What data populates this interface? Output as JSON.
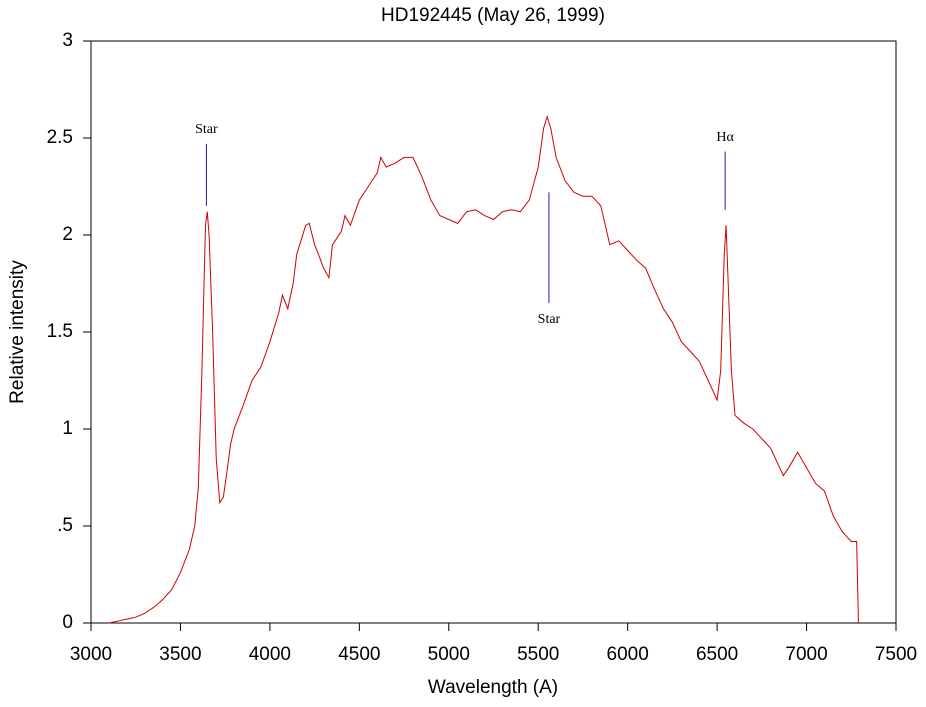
{
  "chart_data": {
    "type": "line",
    "title": "HD192445 (May 26, 1999)",
    "x_label": "Wavelength (A)",
    "y_label": "Relative intensity",
    "x": [
      3100,
      3150,
      3200,
      3250,
      3300,
      3350,
      3400,
      3450,
      3500,
      3550,
      3580,
      3600,
      3620,
      3640,
      3650,
      3660,
      3680,
      3700,
      3720,
      3740,
      3760,
      3780,
      3800,
      3850,
      3900,
      3950,
      4000,
      4050,
      4070,
      4100,
      4130,
      4150,
      4200,
      4220,
      4250,
      4280,
      4300,
      4330,
      4350,
      4400,
      4420,
      4450,
      4500,
      4550,
      4600,
      4620,
      4650,
      4700,
      4750,
      4800,
      4850,
      4900,
      4950,
      5000,
      5050,
      5100,
      5150,
      5200,
      5250,
      5300,
      5350,
      5400,
      5450,
      5500,
      5530,
      5550,
      5570,
      5600,
      5650,
      5700,
      5750,
      5800,
      5850,
      5900,
      5950,
      6000,
      6050,
      6100,
      6150,
      6200,
      6250,
      6300,
      6350,
      6400,
      6450,
      6500,
      6520,
      6540,
      6550,
      6560,
      6580,
      6600,
      6650,
      6700,
      6750,
      6800,
      6850,
      6870,
      6900,
      6950,
      7000,
      7050,
      7100,
      7150,
      7200,
      7220,
      7250,
      7280,
      7290
    ],
    "series": [
      {
        "color": "#d00000",
        "values": [
          0.0,
          0.01,
          0.02,
          0.03,
          0.05,
          0.08,
          0.12,
          0.17,
          0.26,
          0.38,
          0.5,
          0.7,
          1.3,
          2.05,
          2.12,
          2.0,
          1.5,
          0.85,
          0.62,
          0.65,
          0.78,
          0.92,
          1.0,
          1.12,
          1.25,
          1.32,
          1.45,
          1.6,
          1.69,
          1.62,
          1.75,
          1.9,
          2.05,
          2.06,
          1.95,
          1.88,
          1.83,
          1.78,
          1.95,
          2.02,
          2.1,
          2.05,
          2.18,
          2.25,
          2.32,
          2.4,
          2.35,
          2.37,
          2.4,
          2.4,
          2.3,
          2.18,
          2.1,
          2.08,
          2.06,
          2.12,
          2.13,
          2.1,
          2.08,
          2.12,
          2.13,
          2.12,
          2.18,
          2.35,
          2.55,
          2.61,
          2.55,
          2.4,
          2.28,
          2.22,
          2.2,
          2.2,
          2.15,
          1.95,
          1.97,
          1.92,
          1.87,
          1.83,
          1.72,
          1.62,
          1.55,
          1.45,
          1.4,
          1.35,
          1.25,
          1.15,
          1.3,
          1.9,
          2.05,
          1.8,
          1.3,
          1.07,
          1.03,
          1.0,
          0.95,
          0.9,
          0.8,
          0.76,
          0.8,
          0.88,
          0.8,
          0.72,
          0.68,
          0.55,
          0.47,
          0.45,
          0.42,
          0.42,
          0.0
        ]
      }
    ],
    "annotations": [
      {
        "text": "Star",
        "x": 3645,
        "y1": 2.15,
        "y2": 2.47,
        "color": "#2020a0"
      },
      {
        "text": "Star",
        "x": 5560,
        "y1": 2.22,
        "y2": 1.65,
        "color": "#2020a0"
      },
      {
        "text": "Hα",
        "x": 6545,
        "y1": 2.13,
        "y2": 2.43,
        "color": "#2020a0"
      }
    ],
    "xlim": [
      3000,
      7500
    ],
    "xticks": [
      3000,
      3500,
      4000,
      4500,
      5000,
      5500,
      6000,
      6500,
      7000,
      7500
    ],
    "ylim": [
      0,
      3
    ],
    "yticks": [
      0,
      {
        "value": 0.5,
        "label": ".5"
      },
      1,
      1.5,
      2,
      2.5,
      3
    ]
  }
}
